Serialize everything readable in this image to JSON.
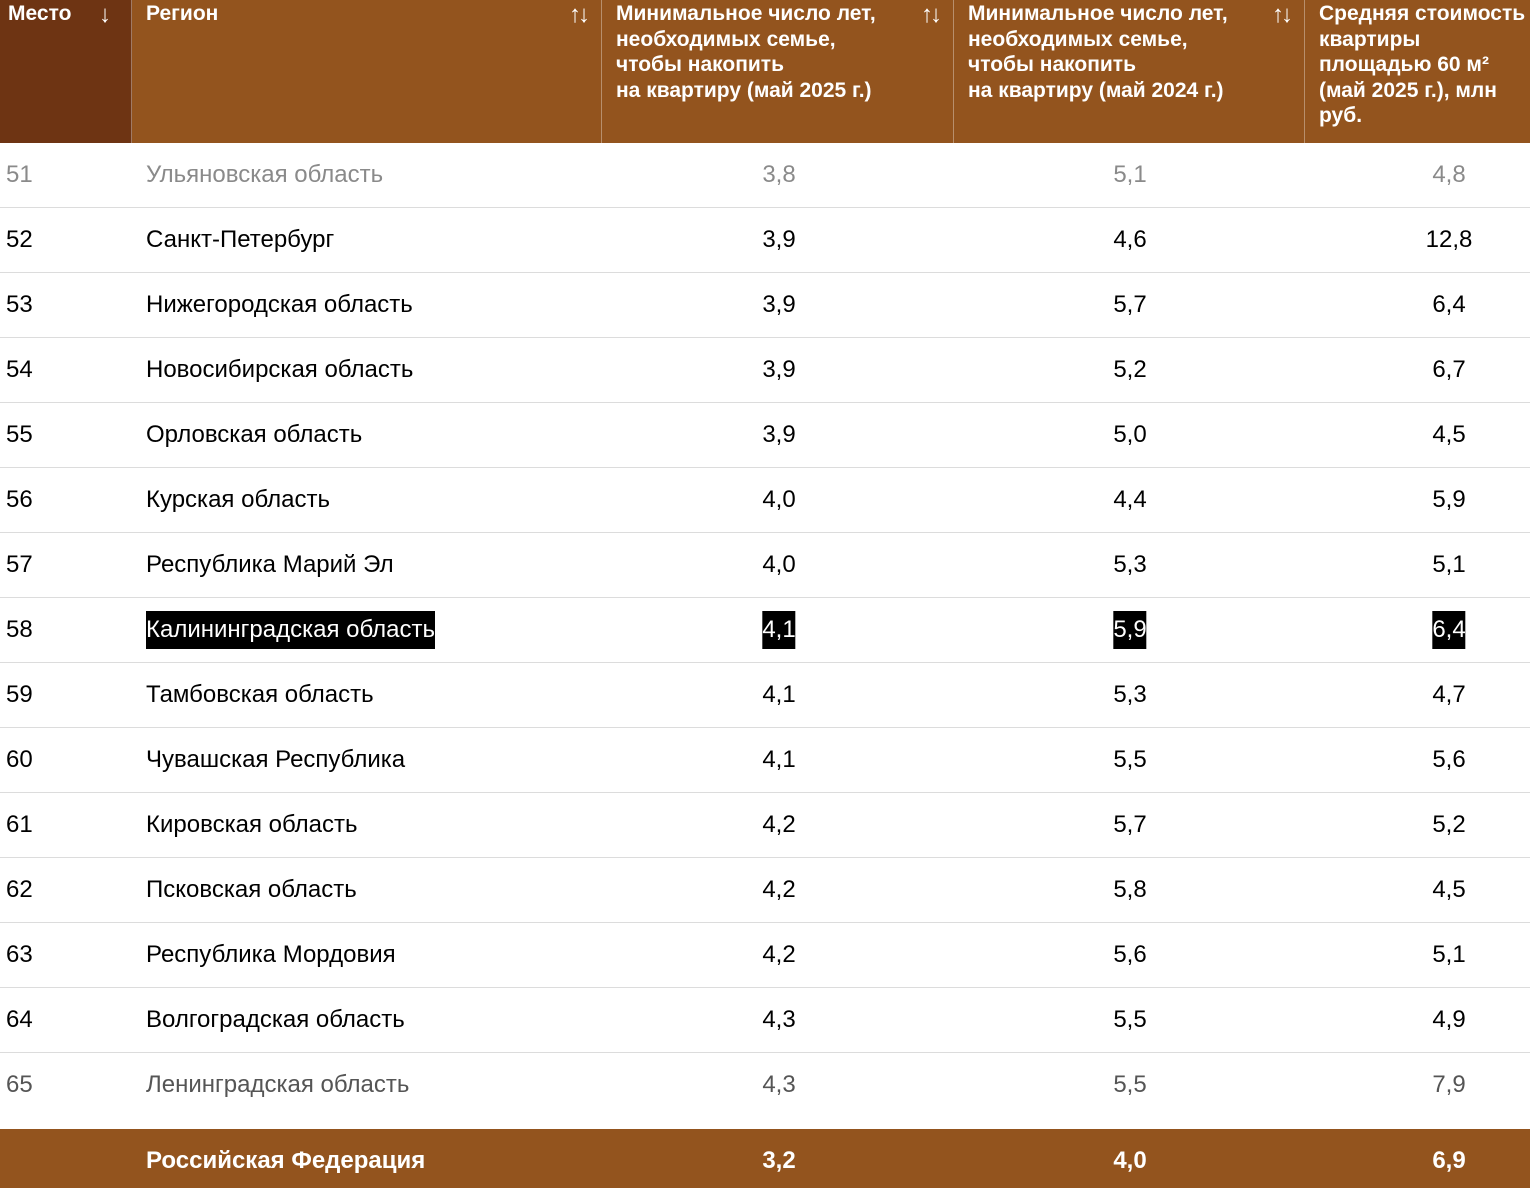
{
  "header": {
    "rank": "Место",
    "rank_sort_icon": "↓",
    "region": "Регион",
    "region_sort_icon": "↑↓",
    "years_2025": "Минимальное число лет,\nнеобходимых семье,\nчтобы накопить\nна квартиру (май 2025 г.)",
    "years_2025_sort_icon": "↑↓",
    "years_2024": "Минимальное число лет,\nнеобходимых семье,\nчтобы накопить\nна квартиру (май 2024 г.)",
    "years_2024_sort_icon": "↑↓",
    "cost": "Средняя стоимость\nквартиры\nплощадью 60 м²\n(май 2025 г.), млн\nруб."
  },
  "rows": [
    {
      "rank": "51",
      "region": "Ульяновская область",
      "y2025": "3,8",
      "y2024": "5,1",
      "cost": "4,8"
    },
    {
      "rank": "52",
      "region": "Санкт-Петербург",
      "y2025": "3,9",
      "y2024": "4,6",
      "cost": "12,8"
    },
    {
      "rank": "53",
      "region": "Нижегородская область",
      "y2025": "3,9",
      "y2024": "5,7",
      "cost": "6,4"
    },
    {
      "rank": "54",
      "region": "Новосибирская область",
      "y2025": "3,9",
      "y2024": "5,2",
      "cost": "6,7"
    },
    {
      "rank": "55",
      "region": "Орловская область",
      "y2025": "3,9",
      "y2024": "5,0",
      "cost": "4,5"
    },
    {
      "rank": "56",
      "region": "Курская область",
      "y2025": "4,0",
      "y2024": "4,4",
      "cost": "5,9"
    },
    {
      "rank": "57",
      "region": "Республика Марий Эл",
      "y2025": "4,0",
      "y2024": "5,3",
      "cost": "5,1"
    },
    {
      "rank": "58",
      "region": "Калининградская область",
      "y2025": "4,1",
      "y2024": "5,9",
      "cost": "6,4"
    },
    {
      "rank": "59",
      "region": "Тамбовская область",
      "y2025": "4,1",
      "y2024": "5,3",
      "cost": "4,7"
    },
    {
      "rank": "60",
      "region": "Чувашская Республика",
      "y2025": "4,1",
      "y2024": "5,5",
      "cost": "5,6"
    },
    {
      "rank": "61",
      "region": "Кировская область",
      "y2025": "4,2",
      "y2024": "5,7",
      "cost": "5,2"
    },
    {
      "rank": "62",
      "region": "Псковская область",
      "y2025": "4,2",
      "y2024": "5,8",
      "cost": "4,5"
    },
    {
      "rank": "63",
      "region": "Республика Мордовия",
      "y2025": "4,2",
      "y2024": "5,6",
      "cost": "5,1"
    },
    {
      "rank": "64",
      "region": "Волгоградская область",
      "y2025": "4,3",
      "y2024": "5,5",
      "cost": "4,9"
    },
    {
      "rank": "65",
      "region": "Ленинградская область",
      "y2025": "4,3",
      "y2024": "5,5",
      "cost": "7,9"
    }
  ],
  "total": {
    "region": "Российская Федерация",
    "y2025": "3,2",
    "y2024": "4,0",
    "cost": "6,9"
  },
  "colors": {
    "header_bg": "#93541e",
    "rank_header_bg": "#6e3413",
    "highlight_bg": "#000000",
    "highlight_text": "#ffffff"
  }
}
